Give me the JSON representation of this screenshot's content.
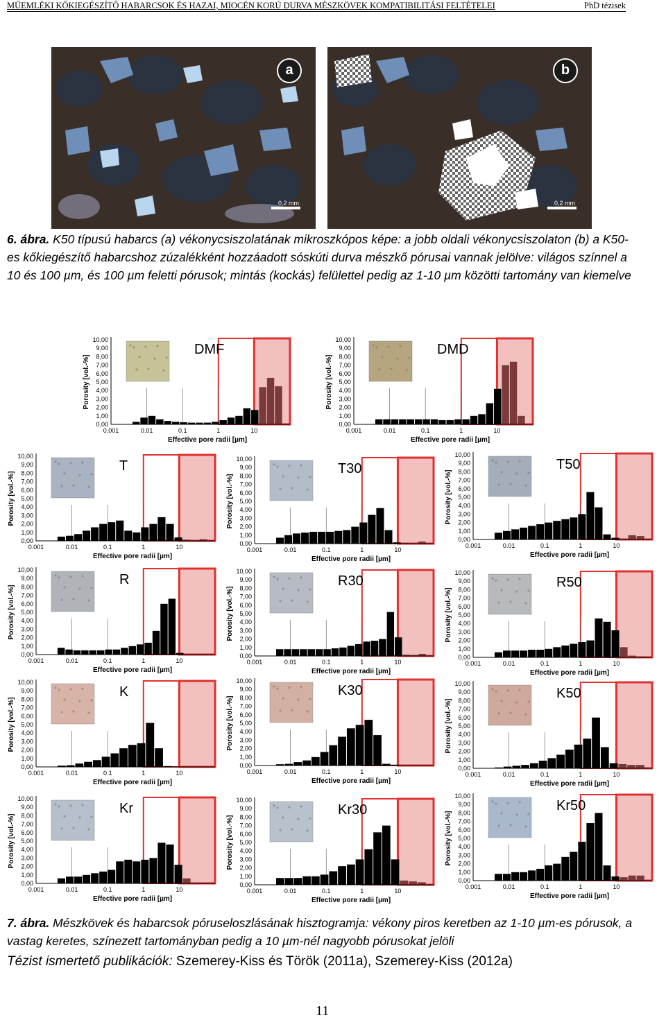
{
  "header": {
    "title": "MŰEMLÉKI KŐKIEGÉSZÍTŐ HABARCSOK ÉS HAZAI, MIOCÉN KORÚ DURVA MÉSZKÖVEK KOMPATIBILITÁSI FELTÉTELEI",
    "right": "PhD tézisek"
  },
  "photos": [
    {
      "badge": "a",
      "scale": "0,2 mm"
    },
    {
      "badge": "b",
      "scale": "0,2 mm"
    }
  ],
  "figure6": {
    "number": "6. ábra.",
    "text": " K50 típusú habarcs (a) vékonycsiszolatának mikroszkópos képe: a jobb oldali vékonycsiszolaton (b) a K50-es kőkiegészítő habarcshoz zúzalékként hozzáadott sóskúti durva mészkő pórusai vannak jelölve: világos színnel a 10 és 100 µm, és 100 µm feletti pórusok; mintás (kockás) felülettel pedig az 1-10 µm közötti tartomány van kiemelve"
  },
  "axis": {
    "y_label": "Porosity [vol.-%]",
    "x_label": "Effective pore radii [µm]",
    "y_ticks": [
      "0,00",
      "1,00",
      "2,00",
      "3,00",
      "4,00",
      "5,00",
      "6,00",
      "7,00",
      "8,00",
      "9,00",
      "10,00"
    ],
    "x_ticks": [
      "0.001",
      "0.01",
      "0.1",
      "1",
      "10"
    ]
  },
  "chart_data": [
    {
      "type": "bar",
      "title": "DMF",
      "x_scale": "log",
      "x_range_um": [
        0.001,
        100
      ],
      "ylim": [
        0,
        10
      ],
      "values": [
        0.3,
        0.8,
        1.0,
        0.6,
        0.4,
        0.3,
        0.25,
        0.2,
        0.2,
        0.2,
        0.3,
        0.5,
        0.8,
        1.0,
        1.9,
        1.7,
        4.4,
        5.5,
        4.5
      ]
    },
    {
      "type": "bar",
      "title": "DMD",
      "x_scale": "log",
      "x_range_um": [
        0.001,
        100
      ],
      "ylim": [
        0,
        10
      ],
      "values": [
        0.6,
        0.6,
        0.6,
        0.6,
        0.6,
        0.6,
        0.6,
        0.6,
        0.5,
        0.5,
        0.6,
        0.6,
        1.0,
        1.2,
        2.5,
        4.2,
        7.0,
        7.4,
        1.0
      ]
    },
    {
      "type": "bar",
      "title": "T",
      "x_scale": "log",
      "x_range_um": [
        0.001,
        100
      ],
      "ylim": [
        0,
        10
      ],
      "values": [
        0.5,
        0.6,
        0.8,
        1.2,
        1.6,
        2.0,
        2.2,
        2.4,
        1.2,
        1.0,
        1.6,
        2.0,
        2.8,
        2.0,
        0.4,
        0.15,
        0.05,
        0.2
      ]
    },
    {
      "type": "bar",
      "title": "T30",
      "x_scale": "log",
      "x_range_um": [
        0.001,
        100
      ],
      "ylim": [
        0,
        10
      ],
      "values": [
        0.7,
        1.0,
        1.2,
        1.3,
        1.4,
        1.4,
        1.4,
        1.5,
        1.6,
        2.0,
        2.5,
        3.4,
        4.2,
        1.6,
        0.15,
        0.1,
        0.05,
        0.25
      ]
    },
    {
      "type": "bar",
      "title": "T50",
      "x_scale": "log",
      "x_range_um": [
        0.001,
        100
      ],
      "ylim": [
        0,
        10
      ],
      "values": [
        0.8,
        1.0,
        1.2,
        1.4,
        1.6,
        1.8,
        2.0,
        2.2,
        2.4,
        2.6,
        3.0,
        5.6,
        3.8,
        0.6,
        0.2,
        0.1,
        0.5,
        0.4
      ]
    },
    {
      "type": "bar",
      "title": "R",
      "x_scale": "log",
      "x_range_um": [
        0.001,
        100
      ],
      "ylim": [
        0,
        10
      ],
      "values": [
        0.8,
        0.6,
        0.5,
        0.5,
        0.5,
        0.5,
        0.6,
        0.6,
        0.8,
        1.0,
        1.2,
        1.4,
        2.8,
        6.0,
        6.6,
        0.2,
        0.1,
        0.1,
        0.1
      ]
    },
    {
      "type": "bar",
      "title": "R30",
      "x_scale": "log",
      "x_range_um": [
        0.001,
        100
      ],
      "ylim": [
        0,
        10
      ],
      "values": [
        0.8,
        0.8,
        0.8,
        0.8,
        0.8,
        0.8,
        0.8,
        0.9,
        1.0,
        1.2,
        1.4,
        1.7,
        1.8,
        2.0,
        5.2,
        2.2,
        0.15,
        0.1,
        0.25
      ]
    },
    {
      "type": "bar",
      "title": "R50",
      "x_scale": "log",
      "x_range_um": [
        0.001,
        100
      ],
      "ylim": [
        0,
        10
      ],
      "values": [
        0.6,
        0.8,
        0.8,
        0.8,
        0.9,
        0.9,
        1.0,
        1.2,
        1.4,
        1.6,
        1.8,
        2.0,
        4.6,
        4.2,
        3.2,
        1.2,
        0.2,
        0.1
      ]
    },
    {
      "type": "bar",
      "title": "K",
      "x_scale": "log",
      "x_range_um": [
        0.001,
        100
      ],
      "ylim": [
        0,
        10
      ],
      "values": [
        0.15,
        0.2,
        0.4,
        0.6,
        0.8,
        1.2,
        1.6,
        2.2,
        2.6,
        2.8,
        5.2,
        2.2,
        0.1,
        0.05,
        0.05,
        0.05,
        0.05
      ]
    },
    {
      "type": "bar",
      "title": "K30",
      "x_scale": "log",
      "x_range_um": [
        0.001,
        100
      ],
      "ylim": [
        0,
        10
      ],
      "values": [
        0.15,
        0.2,
        0.4,
        0.6,
        1.0,
        1.6,
        2.4,
        3.4,
        4.4,
        4.8,
        5.4,
        3.6,
        0.2,
        0.1,
        0.05,
        0.05,
        0.05
      ]
    },
    {
      "type": "bar",
      "title": "K50",
      "x_scale": "log",
      "x_range_um": [
        0.001,
        100
      ],
      "ylim": [
        0,
        10
      ],
      "values": [
        0.1,
        0.2,
        0.3,
        0.4,
        0.6,
        0.9,
        1.2,
        1.6,
        2.2,
        2.8,
        3.5,
        6.0,
        2.5,
        0.6,
        0.5,
        0.4,
        0.4
      ]
    },
    {
      "type": "bar",
      "title": "Kr",
      "x_scale": "log",
      "x_range_um": [
        0.001,
        100
      ],
      "ylim": [
        0,
        10
      ],
      "values": [
        0.6,
        0.8,
        0.8,
        1.0,
        1.2,
        1.4,
        1.6,
        2.6,
        2.8,
        2.6,
        2.8,
        3.0,
        4.8,
        4.6,
        2.2,
        0.6,
        0.1,
        0.05
      ]
    },
    {
      "type": "bar",
      "title": "Kr30",
      "x_scale": "log",
      "x_range_um": [
        0.001,
        100
      ],
      "ylim": [
        0,
        10
      ],
      "values": [
        0.8,
        0.8,
        0.8,
        1.0,
        1.0,
        1.2,
        1.6,
        2.2,
        2.4,
        3.0,
        4.2,
        6.2,
        7.0,
        3.0,
        0.5,
        0.4,
        0.3
      ]
    },
    {
      "type": "bar",
      "title": "Kr50",
      "x_scale": "log",
      "x_range_um": [
        0.001,
        100
      ],
      "ylim": [
        0,
        10
      ],
      "values": [
        0.8,
        0.8,
        1.0,
        1.0,
        1.2,
        1.4,
        1.8,
        2.0,
        2.8,
        3.4,
        4.6,
        6.8,
        8.0,
        1.8,
        0.5,
        0.4,
        0.6,
        0.6
      ]
    }
  ],
  "figure7": {
    "number": "7. ábra.",
    "text": " Mészkövek és habarcsok póruseloszlásának hisztogramja: vékony piros keretben az 1-10 µm-es pórusok, a vastag keretes, színezett tartományban pedig a 10 µm-nél nagyobb pórusokat jelöli"
  },
  "publications": {
    "label": "Tézist ismertető publikációk:",
    "text": " Szemerey-Kiss és Török (2011a), Szemerey-Kiss (2012a)"
  },
  "page_number": "11",
  "colors": {
    "highlight": "#e03030",
    "shade": "#f3c0c0",
    "bar": "#000000",
    "tint_bar": "#7a3a3a"
  }
}
